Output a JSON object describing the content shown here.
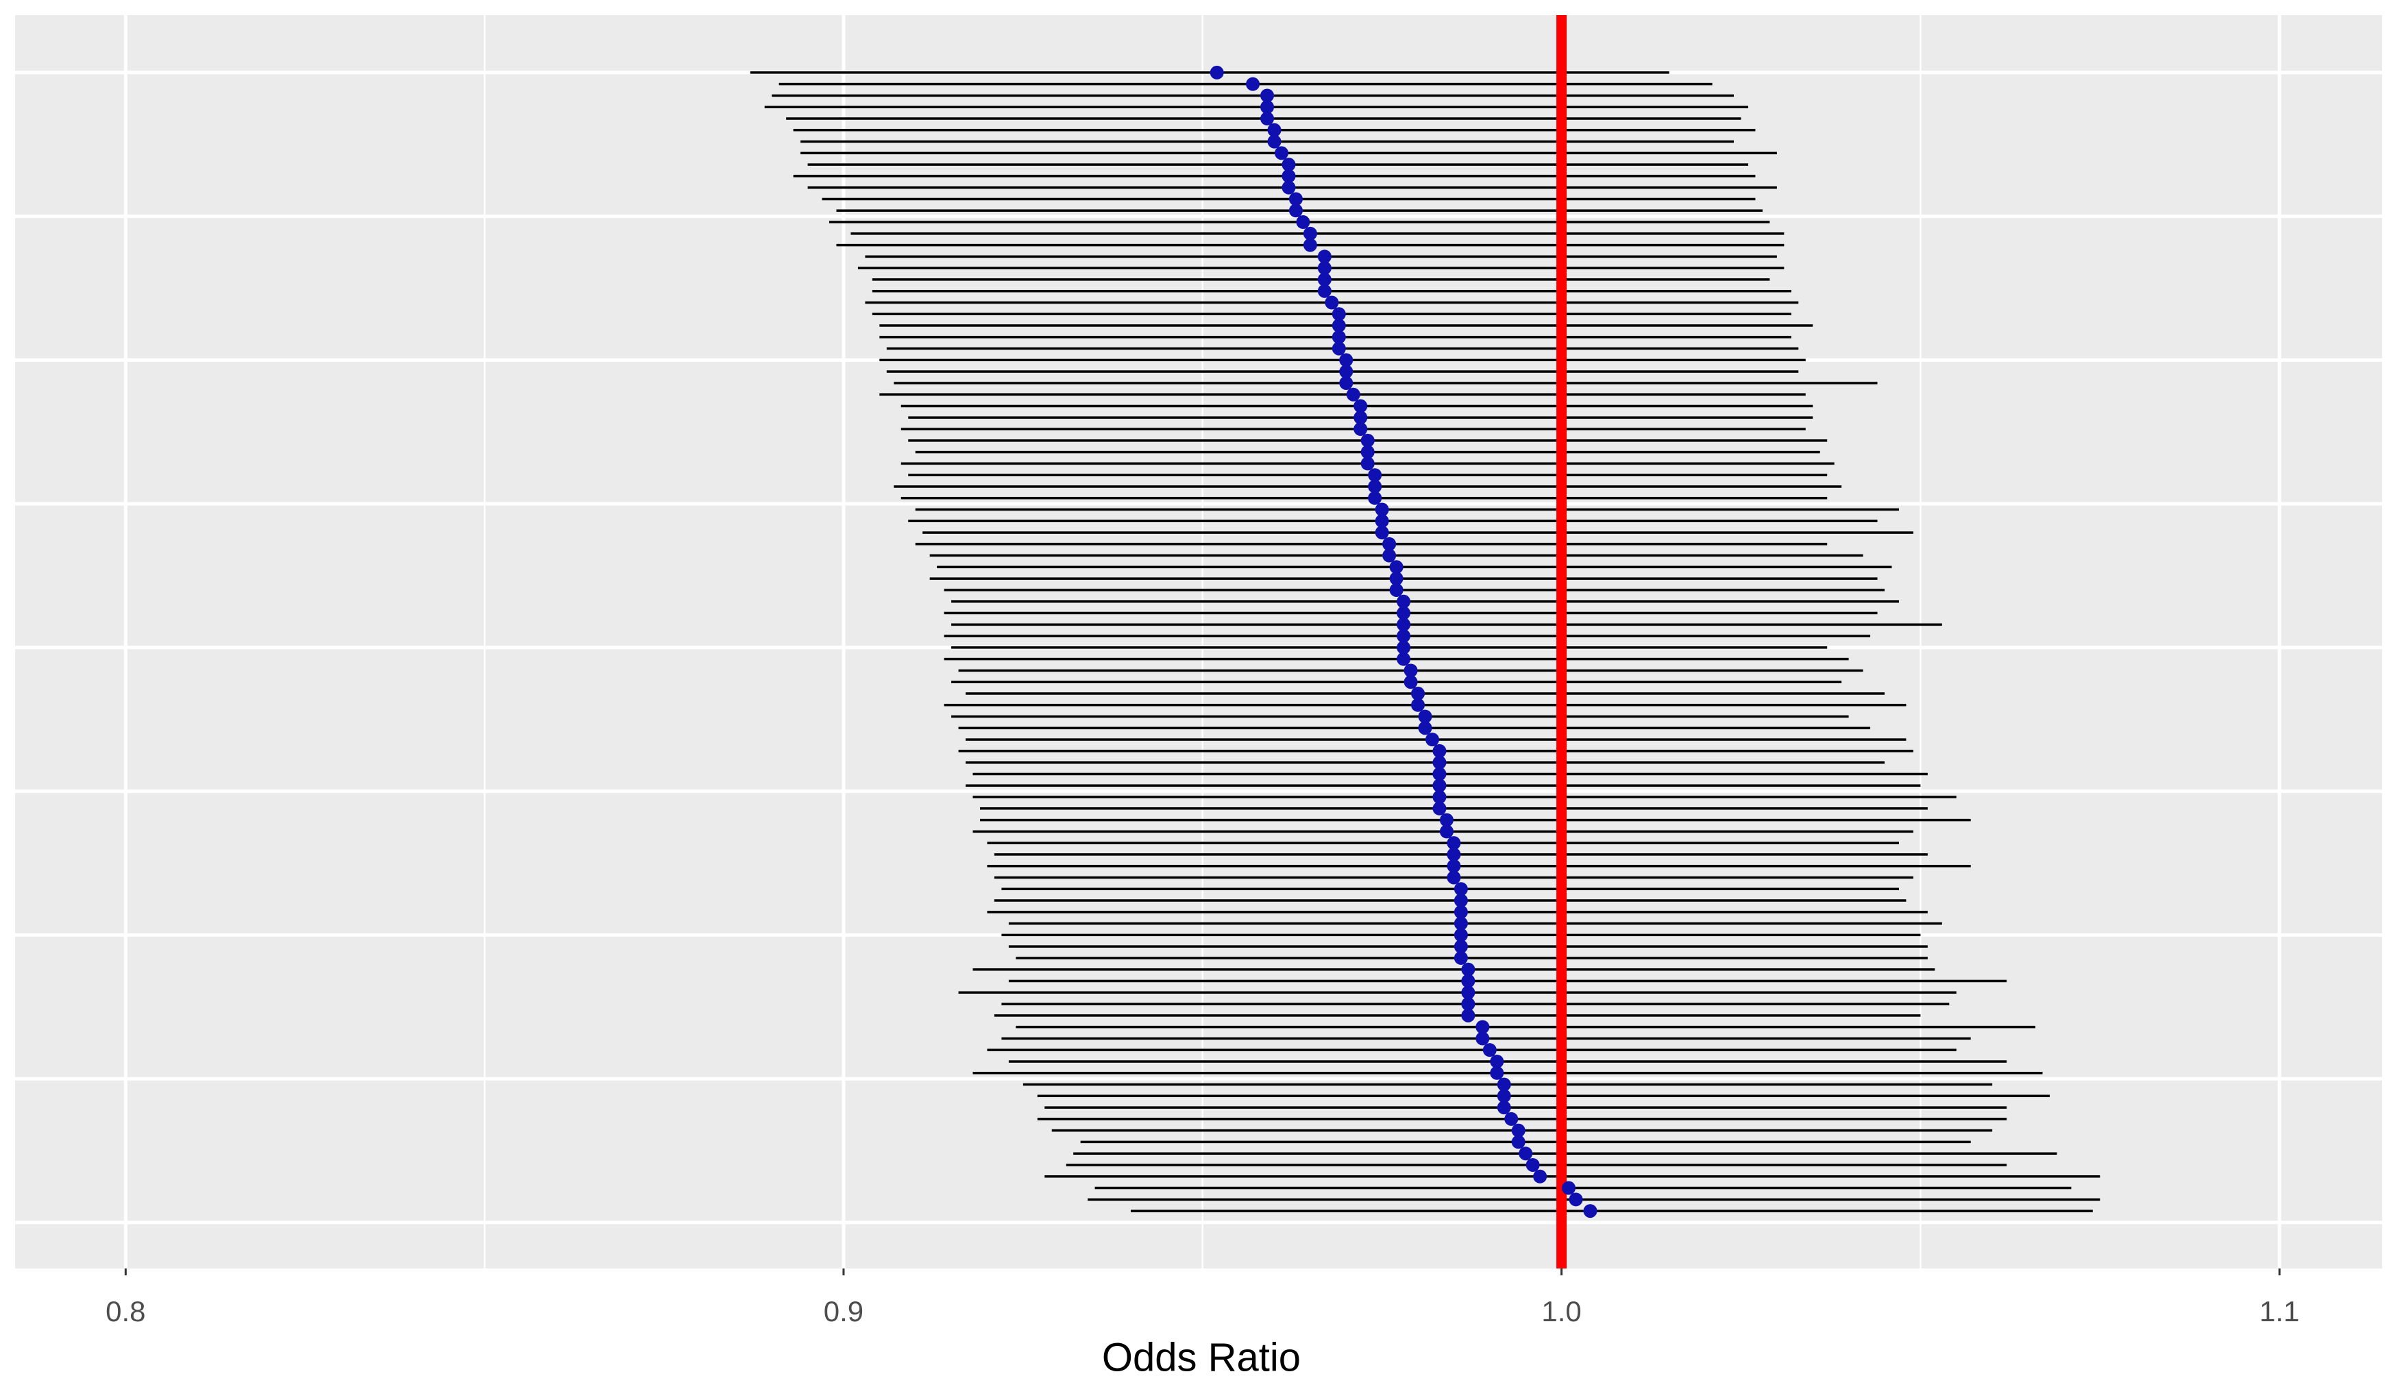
{
  "chart_data": {
    "type": "forest",
    "x_label": "Odds Ratio",
    "xlim": [
      0.7846,
      1.1143
    ],
    "xticks": [
      0.8,
      0.9,
      {
        "value": 1,
        "label": "1.0"
      },
      1.1
    ],
    "xminor": [
      0.85,
      0.95,
      1.05
    ],
    "ylim": [
      -4,
      105
    ],
    "ygrid": [
      0,
      12.5,
      25,
      37.5,
      50,
      62.5,
      75,
      87.5,
      100
    ],
    "grid": true,
    "point_color": "#1010b0",
    "interval_color": "#000000",
    "reference_line": 1,
    "reference_color": "#ff0000",
    "estimates": [
      0.952,
      0.957,
      0.959,
      0.959,
      0.959,
      0.96,
      0.96,
      0.961,
      0.962,
      0.962,
      0.962,
      0.963,
      0.963,
      0.964,
      0.965,
      0.965,
      0.967,
      0.967,
      0.967,
      0.967,
      0.968,
      0.969,
      0.969,
      0.969,
      0.969,
      0.97,
      0.97,
      0.97,
      0.971,
      0.972,
      0.972,
      0.972,
      0.973,
      0.973,
      0.973,
      0.974,
      0.974,
      0.974,
      0.975,
      0.975,
      0.975,
      0.976,
      0.976,
      0.977,
      0.977,
      0.977,
      0.978,
      0.978,
      0.978,
      0.978,
      0.978,
      0.978,
      0.979,
      0.979,
      0.98,
      0.98,
      0.981,
      0.981,
      0.982,
      0.983,
      0.983,
      0.983,
      0.983,
      0.983,
      0.983,
      0.984,
      0.984,
      0.985,
      0.985,
      0.985,
      0.985,
      0.986,
      0.986,
      0.986,
      0.986,
      0.986,
      0.986,
      0.986,
      0.987,
      0.987,
      0.987,
      0.987,
      0.987,
      0.989,
      0.989,
      0.99,
      0.991,
      0.991,
      0.992,
      0.992,
      0.992,
      0.993,
      0.994,
      0.994,
      0.995,
      0.996,
      0.997,
      1.001,
      1.002,
      1.004
    ],
    "lower": [
      0.887,
      0.891,
      0.89,
      0.889,
      0.892,
      0.893,
      0.894,
      0.894,
      0.895,
      0.893,
      0.895,
      0.897,
      0.899,
      0.898,
      0.901,
      0.899,
      0.903,
      0.902,
      0.904,
      0.904,
      0.903,
      0.904,
      0.905,
      0.905,
      0.906,
      0.905,
      0.906,
      0.907,
      0.905,
      0.908,
      0.909,
      0.908,
      0.909,
      0.91,
      0.908,
      0.909,
      0.907,
      0.908,
      0.91,
      0.909,
      0.911,
      0.91,
      0.912,
      0.913,
      0.912,
      0.914,
      0.915,
      0.914,
      0.915,
      0.914,
      0.915,
      0.914,
      0.916,
      0.915,
      0.917,
      0.914,
      0.915,
      0.916,
      0.917,
      0.916,
      0.917,
      0.918,
      0.917,
      0.918,
      0.919,
      0.919,
      0.918,
      0.92,
      0.921,
      0.92,
      0.921,
      0.922,
      0.921,
      0.92,
      0.923,
      0.922,
      0.923,
      0.924,
      0.918,
      0.923,
      0.916,
      0.922,
      0.921,
      0.924,
      0.922,
      0.92,
      0.923,
      0.918,
      0.925,
      0.927,
      0.928,
      0.927,
      0.929,
      0.933,
      0.932,
      0.931,
      0.928,
      0.935,
      0.934,
      0.94
    ],
    "upper": [
      1.015,
      1.021,
      1.024,
      1.026,
      1.025,
      1.027,
      1.024,
      1.03,
      1.026,
      1.027,
      1.03,
      1.027,
      1.028,
      1.029,
      1.031,
      1.031,
      1.03,
      1.031,
      1.029,
      1.032,
      1.033,
      1.032,
      1.035,
      1.032,
      1.033,
      1.034,
      1.033,
      1.044,
      1.034,
      1.035,
      1.035,
      1.034,
      1.037,
      1.036,
      1.038,
      1.037,
      1.039,
      1.037,
      1.047,
      1.044,
      1.049,
      1.037,
      1.042,
      1.046,
      1.044,
      1.045,
      1.047,
      1.044,
      1.053,
      1.043,
      1.037,
      1.04,
      1.042,
      1.039,
      1.045,
      1.048,
      1.04,
      1.043,
      1.048,
      1.049,
      1.045,
      1.051,
      1.05,
      1.055,
      1.051,
      1.057,
      1.049,
      1.047,
      1.051,
      1.057,
      1.049,
      1.047,
      1.048,
      1.051,
      1.053,
      1.05,
      1.051,
      1.051,
      1.052,
      1.062,
      1.055,
      1.054,
      1.05,
      1.066,
      1.057,
      1.055,
      1.062,
      1.067,
      1.06,
      1.068,
      1.062,
      1.062,
      1.06,
      1.057,
      1.069,
      1.062,
      1.075,
      1.071,
      1.075,
      1.074
    ]
  }
}
